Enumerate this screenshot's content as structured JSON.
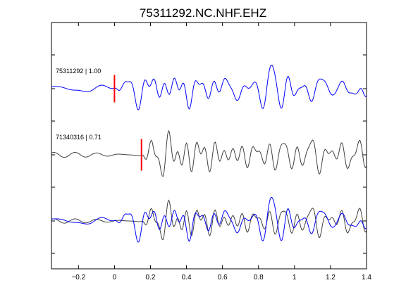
{
  "chart_data": {
    "type": "line",
    "title": "75311292.NC.NHF.EHZ",
    "xlabel": "",
    "ylabel": "",
    "xlim": [
      -0.35,
      1.4
    ],
    "x_ticks": [
      -0.2,
      0,
      0.2,
      0.4,
      0.6,
      0.8,
      1,
      1.2,
      1.4
    ],
    "x_tick_labels": [
      "−0.2",
      "0",
      "0.2",
      "0.4",
      "0.6",
      "0.8",
      "1",
      "1.2",
      "1.4"
    ],
    "grid": false,
    "colors": {
      "master": "#0000ff",
      "match": "#404040",
      "pick": "#ff0000",
      "axis": "#000000"
    },
    "traces": [
      {
        "label": "75311292 | 1.00",
        "color": "#0000ff",
        "pick_time": 0.0,
        "sample_rate": 100,
        "onset": 0.0,
        "amplitude": 1.0,
        "seed": 11
      },
      {
        "label": "71340316 | 0.71",
        "color": "#404040",
        "pick_time": 0.15,
        "sample_rate": 100,
        "onset": 0.15,
        "amplitude": 1.0,
        "seed": 37
      }
    ],
    "overlay": {
      "series": [
        "75311292",
        "71340316"
      ]
    }
  }
}
